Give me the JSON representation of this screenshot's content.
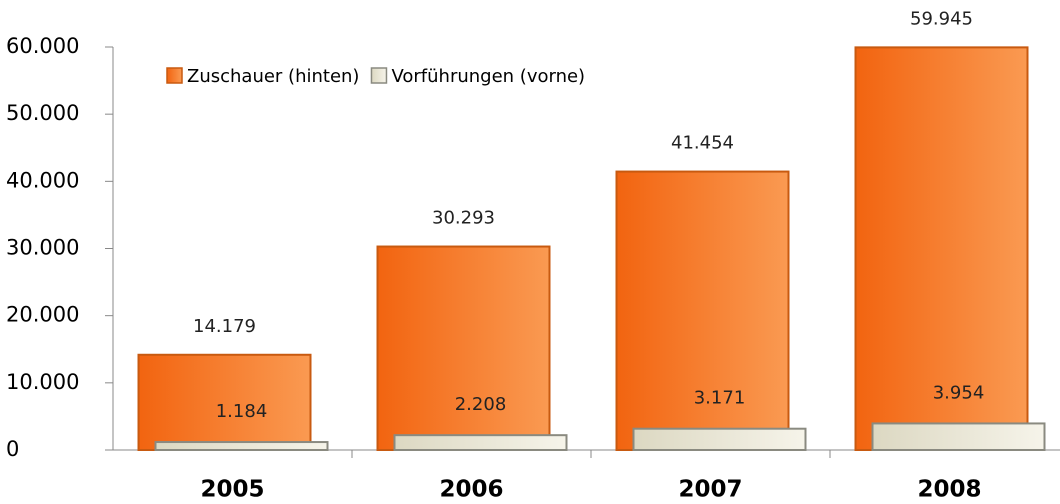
{
  "chart_data": {
    "type": "bar",
    "categories": [
      "2005",
      "2006",
      "2007",
      "2008"
    ],
    "series": [
      {
        "name": "Zuschauer (hinten)",
        "color": "#f47a20",
        "values": [
          14179,
          30293,
          41454,
          59945
        ],
        "value_labels": [
          "14.179",
          "30.293",
          "41.454",
          "59.945"
        ]
      },
      {
        "name": "Vorführungen (vorne)",
        "color": "#ebe8d8",
        "values": [
          1184,
          2208,
          3171,
          3954
        ],
        "value_labels": [
          "1.184",
          "2.208",
          "3.171",
          "3.954"
        ]
      }
    ],
    "ylim": [
      0,
      60000
    ],
    "yticks": [
      0,
      {
        "value": 10000,
        "label": "10.000"
      },
      {
        "value": 20000,
        "label": "20.000"
      },
      {
        "value": 30000,
        "label": "30.000"
      },
      {
        "value": 40000,
        "label": "40.000"
      },
      {
        "value": 50000,
        "label": "50.000"
      },
      {
        "value": 60000,
        "label": "60.000"
      }
    ],
    "legend": "top-left"
  }
}
